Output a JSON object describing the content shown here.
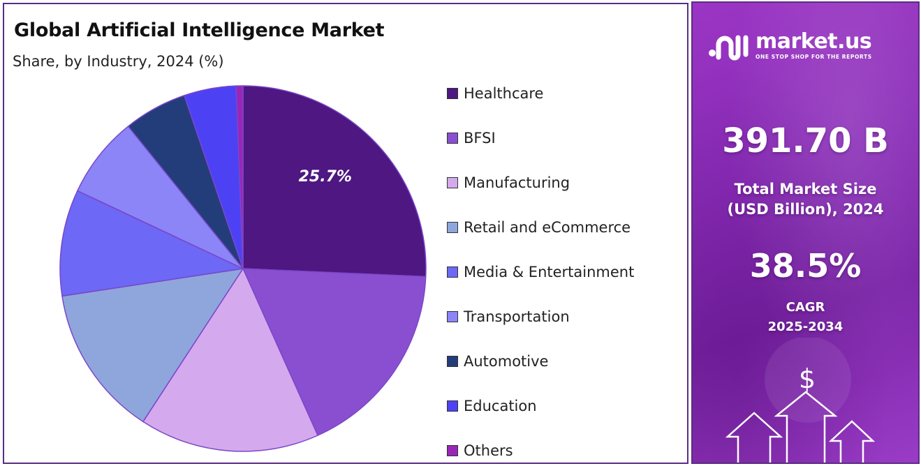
{
  "title": "Global Artificial Intelligence Market",
  "subtitle": "Share, by Industry, 2024 (%)",
  "chart_data": {
    "type": "pie",
    "categories": [
      "Healthcare",
      "BFSI",
      "Manufacturing",
      "Retail and eCommerce",
      "Media & Entertainment",
      "Transportation",
      "Automotive",
      "Education",
      "Others"
    ],
    "values": [
      25.7,
      17.6,
      15.9,
      13.4,
      9.4,
      7.2,
      5.6,
      4.6,
      0.6
    ],
    "colors": [
      "#4e1781",
      "#8a4fd1",
      "#d5a9ed",
      "#8ea6dc",
      "#6d68f5",
      "#8b85f8",
      "#233d7a",
      "#4c42f4",
      "#9a26b8"
    ],
    "data_labels": [
      "25.7%"
    ],
    "legend_position": "right"
  },
  "brand": {
    "name": "market.us",
    "tagline": "ONE STOP SHOP FOR THE REPORTS",
    "icon": "market-us-logo-icon"
  },
  "stats": {
    "market_size": "391.70 B",
    "market_size_label_line1": "Total Market Size",
    "market_size_label_line2": "(USD Billion), 2024",
    "cagr": "38.5%",
    "cagr_label_line1": "CAGR",
    "cagr_label_line2": "2025-2034"
  },
  "decor": {
    "currency_symbol": "$",
    "icons": [
      "dollar-icon",
      "up-arrow-icon"
    ]
  }
}
